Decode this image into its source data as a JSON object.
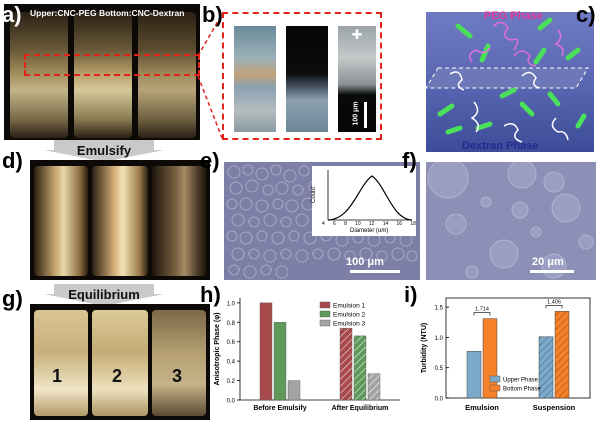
{
  "panels": {
    "a": {
      "label": "a)",
      "header": "Upper:CNC-PEG  Bottom:CNC-Dextran"
    },
    "b": {
      "label": "b)",
      "scale_bar": "100 μm"
    },
    "c": {
      "label": "c)",
      "top_phase": "PEG Phase",
      "bottom_phase": "Dextran Phase"
    },
    "d": {
      "label": "d)",
      "step": "Emulsify"
    },
    "e": {
      "label": "e)",
      "scale_bar": "100 μm",
      "inset": {
        "xlabel": "Diameter (um)",
        "ylabel": "Count",
        "xticks": [
          "4",
          "6",
          "8",
          "10",
          "12",
          "14",
          "16",
          "18"
        ]
      }
    },
    "f": {
      "label": "f)",
      "scale_bar": "20 μm"
    },
    "g": {
      "label": "g)",
      "step": "Equilibrium",
      "vials": [
        "1",
        "2",
        "3"
      ]
    },
    "h": {
      "label": "h)"
    },
    "i": {
      "label": "i)"
    }
  },
  "colors": {
    "emulsion1": "#a84a4c",
    "emulsion2": "#5f9a5a",
    "emulsion3": "#a3a3a3",
    "upper_phase": "#7ca9c8",
    "bottom_phase": "#f5822a",
    "phase_box": "#5a6ab8"
  },
  "chart_data": [
    {
      "type": "bar",
      "panel": "h",
      "title": "",
      "xlabel": "",
      "ylabel": "Anisotropic Phase (φ)",
      "categories": [
        "Before Emulsify",
        "After Equilibrium"
      ],
      "series": [
        {
          "name": "Emulsion 1",
          "values": [
            1.0,
            0.74
          ]
        },
        {
          "name": "Emulsion 2",
          "values": [
            0.8,
            0.66
          ]
        },
        {
          "name": "Emulsion 3",
          "values": [
            0.2,
            0.27
          ]
        }
      ],
      "ylim": [
        0.0,
        1.05
      ],
      "yticks": [
        "0.0",
        "0.2",
        "0.4",
        "0.6",
        "0.8",
        "1.0"
      ],
      "legend": "top-right",
      "grid": false
    },
    {
      "type": "bar",
      "panel": "i",
      "title": "",
      "xlabel": "",
      "ylabel": "Turbidity (NTU)",
      "categories": [
        "Emulsion",
        "Suspension"
      ],
      "series": [
        {
          "name": "Upper Phase",
          "values": [
            0.77,
            1.01
          ]
        },
        {
          "name": "Bottom Phase",
          "values": [
            1.31,
            1.43
          ]
        }
      ],
      "ratios": [
        "1.714",
        "1.406"
      ],
      "ylim": [
        0.0,
        1.65
      ],
      "yticks": [
        "0.0",
        "0.5",
        "1.0",
        "1.5"
      ],
      "legend": "bottom-center",
      "grid": false
    }
  ]
}
